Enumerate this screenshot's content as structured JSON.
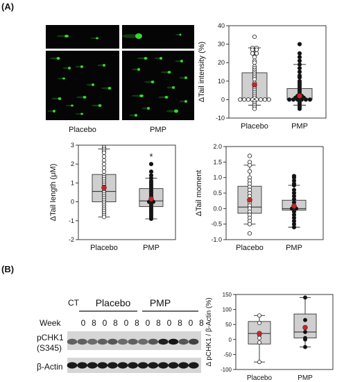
{
  "panel_a": {
    "label": "(A)",
    "micrographs": {
      "placebo_label": "Placebo",
      "pmp_label": "PMP",
      "spot_color": "#37d62c",
      "background_color": "#050505"
    }
  },
  "panel_b": {
    "label": "(B)",
    "blot": {
      "ct_label": "CT",
      "placebo_label": "Placebo",
      "pmp_label": "PMP",
      "week_label": "Week",
      "lanes": [
        "0",
        "8",
        "0",
        "8",
        "0",
        "8",
        "0",
        "8",
        "0",
        "8",
        "0",
        "8"
      ],
      "row1_label_line1": "pCHK1",
      "row1_label_line2": "(S345)",
      "row2_label": "β-Actin"
    }
  },
  "chart_data": [
    {
      "id": "tail-intensity",
      "type": "boxplot",
      "ylabel": "ΔTail intensity (%)",
      "categories": [
        "Placebo",
        "PMP"
      ],
      "ylim": [
        -10,
        40
      ],
      "yticks": [
        -10,
        0,
        10,
        20,
        30,
        40
      ],
      "tick_labels": [
        "-10",
        "0",
        "10",
        "20",
        "30",
        "40"
      ],
      "boxes": [
        {
          "category": "Placebo",
          "whisker_low": -3,
          "q1": 0,
          "median": 0,
          "q3": 14.5,
          "whisker_high": 28,
          "mean": 8,
          "points": [
            34,
            28,
            28,
            27,
            27,
            25,
            25,
            23,
            21,
            20,
            18,
            17,
            16,
            15,
            14,
            13,
            12,
            11,
            9,
            8,
            7,
            6,
            5,
            4,
            3,
            2,
            1,
            0,
            0,
            0,
            0,
            0,
            0,
            0,
            0,
            -1,
            -2,
            -3,
            -4,
            -5
          ]
        },
        {
          "category": "PMP",
          "whisker_low": -3,
          "q1": 0,
          "median": 0.5,
          "q3": 6,
          "whisker_high": 19,
          "mean": 2,
          "points": [
            30,
            25,
            23,
            21,
            19,
            17,
            15,
            13,
            12,
            10,
            9,
            8,
            7,
            6,
            5,
            4,
            3,
            2,
            2,
            1,
            1,
            1,
            0,
            0,
            0,
            0,
            0,
            0,
            -1,
            -2,
            -3,
            -4,
            -5
          ]
        }
      ],
      "filled": [
        false,
        true
      ],
      "significance": [
        "",
        ""
      ]
    },
    {
      "id": "tail-length",
      "type": "boxplot",
      "ylabel": "ΔTail length (μM)",
      "categories": [
        "Placebo",
        "PMP"
      ],
      "ylim": [
        -2,
        3
      ],
      "yticks": [
        -2,
        -1,
        0,
        1,
        2,
        3
      ],
      "tick_labels": [
        "-2",
        "-1",
        "0",
        "1",
        "2",
        "3"
      ],
      "boxes": [
        {
          "category": "Placebo",
          "whisker_low": -0.8,
          "q1": 0,
          "median": 0.55,
          "q3": 1.45,
          "whisker_high": 2.8,
          "mean": 0.75,
          "points": [
            2.9,
            2.8,
            2.7,
            2.6,
            2.4,
            2.2,
            2.0,
            1.8,
            1.6,
            1.4,
            1.3,
            1.2,
            1.1,
            1.0,
            0.9,
            0.8,
            0.7,
            0.6,
            0.5,
            0.4,
            0.3,
            0.2,
            0.1,
            0.0,
            -0.1,
            -0.2,
            -0.3,
            -0.4,
            -0.5,
            -0.6,
            -0.7,
            -0.8
          ]
        },
        {
          "category": "PMP",
          "whisker_low": -0.9,
          "q1": -0.25,
          "median": 0.05,
          "q3": 0.7,
          "whisker_high": 1.25,
          "mean": 0.15,
          "points": [
            2.0,
            1.6,
            1.4,
            1.25,
            1.1,
            1.0,
            0.9,
            0.8,
            0.7,
            0.6,
            0.5,
            0.4,
            0.3,
            0.2,
            0.1,
            0.0,
            0.0,
            -0.1,
            -0.2,
            -0.3,
            -0.4,
            -0.5,
            -0.6,
            -0.7,
            -0.8,
            -0.9
          ]
        }
      ],
      "filled": [
        false,
        true
      ],
      "significance": [
        "",
        "*"
      ]
    },
    {
      "id": "tail-moment",
      "type": "boxplot",
      "ylabel": "ΔTail moment",
      "categories": [
        "Placebo",
        "PMP"
      ],
      "ylim": [
        -1.0,
        2.0
      ],
      "yticks": [
        -1.0,
        -0.5,
        0.0,
        0.5,
        1.0,
        1.5,
        2.0
      ],
      "tick_labels": [
        "-1.0",
        "-0.5",
        "0.0",
        "0.5",
        "1.0",
        "1.5",
        "2.0"
      ],
      "boxes": [
        {
          "category": "Placebo",
          "whisker_low": -0.5,
          "q1": -0.15,
          "median": 0.05,
          "q3": 0.72,
          "whisker_high": 1.4,
          "mean": 0.28,
          "points": [
            1.7,
            1.5,
            1.4,
            1.2,
            1.0,
            0.9,
            0.8,
            0.7,
            0.6,
            0.5,
            0.4,
            0.3,
            0.2,
            0.1,
            0.0,
            -0.1,
            -0.2,
            -0.3,
            -0.4,
            -0.5,
            -0.8
          ]
        },
        {
          "category": "PMP",
          "whisker_low": -0.6,
          "q1": -0.05,
          "median": 0.0,
          "q3": 0.27,
          "whisker_high": 0.75,
          "mean": 0.08,
          "points": [
            1.05,
            1.0,
            0.9,
            0.8,
            0.75,
            0.6,
            0.5,
            0.4,
            0.3,
            0.2,
            0.1,
            0.0,
            0.0,
            -0.1,
            -0.2,
            -0.3,
            -0.4,
            -0.5,
            -0.6
          ]
        }
      ],
      "filled": [
        false,
        true
      ],
      "significance": [
        "",
        ""
      ]
    },
    {
      "id": "pchk1",
      "type": "boxplot",
      "ylabel": "Δ pCHK1 / β-Actin (%)",
      "categories": [
        "Placebo",
        "PMP"
      ],
      "ylim": [
        -100,
        150
      ],
      "yticks": [
        -100,
        -50,
        0,
        50,
        100,
        150
      ],
      "tick_labels": [
        "-100",
        "-50",
        "0",
        "50",
        "100",
        "150"
      ],
      "boxes": [
        {
          "category": "Placebo",
          "whisker_low": -75,
          "q1": -15,
          "median": 20,
          "q3": 60,
          "whisker_high": 80,
          "mean": 20,
          "points": [
            80,
            55,
            20,
            15,
            5,
            -10,
            -75
          ]
        },
        {
          "category": "PMP",
          "whisker_low": -25,
          "q1": 5,
          "median": 25,
          "q3": 85,
          "whisker_high": 140,
          "mean": 40,
          "points": [
            140,
            65,
            40,
            25,
            5,
            0,
            -25
          ]
        }
      ],
      "filled": [
        false,
        true
      ],
      "significance": [
        "",
        ""
      ]
    }
  ]
}
